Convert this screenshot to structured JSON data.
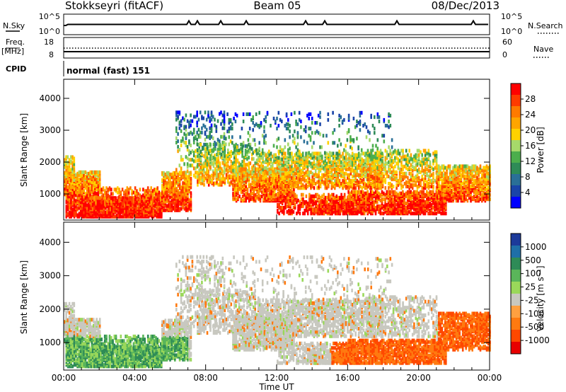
{
  "header": {
    "station": "Stokkseyri (fitACF)",
    "beam": "Beam 05",
    "date": "08/Dec/2013"
  },
  "top_panels": {
    "nsky_label": "N.Sky",
    "nsearch_label": "N.Search",
    "nsky_ticks": [
      "10^5",
      "10^0"
    ],
    "nsearch_ticks": [
      "10^5",
      "10^0"
    ],
    "freq_label": "Freq.",
    "freq_unit": "[MHz]",
    "freq_ticks": [
      "18",
      "8"
    ],
    "nave_label": "Nave",
    "nave_ticks": [
      "60",
      "0"
    ],
    "cpid_label": "CPID",
    "cpid_text": "normal (fast) 151"
  },
  "chart_data": [
    {
      "type": "heatmap",
      "panel": "power",
      "ylabel": "Slant Range [km]",
      "xlabel": "",
      "x_ticks": [
        "00:00",
        "04:00",
        "08:00",
        "12:00",
        "16:00",
        "20:00",
        "00:00"
      ],
      "xlim_hours": [
        0,
        24
      ],
      "ylim": [
        180,
        4600
      ],
      "y_ticks": [
        1000,
        2000,
        3000,
        4000
      ],
      "colorbar_label": "Power [dB]",
      "colorbar_ticks": [
        "28",
        "24",
        "20",
        "16",
        "12",
        "8",
        "4"
      ],
      "colorbar_colors": [
        "#ff0000",
        "#ff3a00",
        "#ff7a00",
        "#ffa500",
        "#ffd200",
        "#a6d96a",
        "#4cae4c",
        "#2e8b57",
        "#2a6f97",
        "#1a44a8",
        "#0000ff"
      ]
    },
    {
      "type": "heatmap",
      "panel": "velocity",
      "ylabel": "Slant Range [km]",
      "xlabel": "Time UT",
      "x_ticks": [
        "00:00",
        "04:00",
        "08:00",
        "12:00",
        "16:00",
        "20:00",
        "00:00"
      ],
      "xlim_hours": [
        0,
        24
      ],
      "ylim": [
        180,
        4600
      ],
      "y_ticks": [
        1000,
        2000,
        3000,
        4000
      ],
      "colorbar_label": "Velocity [m s⁻¹]",
      "colorbar_ticks": [
        "1000",
        "500",
        "100",
        "25",
        "-25",
        "-100",
        "-500",
        "-1000"
      ],
      "colorbar_colors": [
        "#1c3a9a",
        "#1f6fa8",
        "#2e8b57",
        "#5ab55a",
        "#9ad85a",
        "#c8c8c0",
        "#ffa040",
        "#ff7a10",
        "#ff4800",
        "#e80000"
      ]
    }
  ]
}
